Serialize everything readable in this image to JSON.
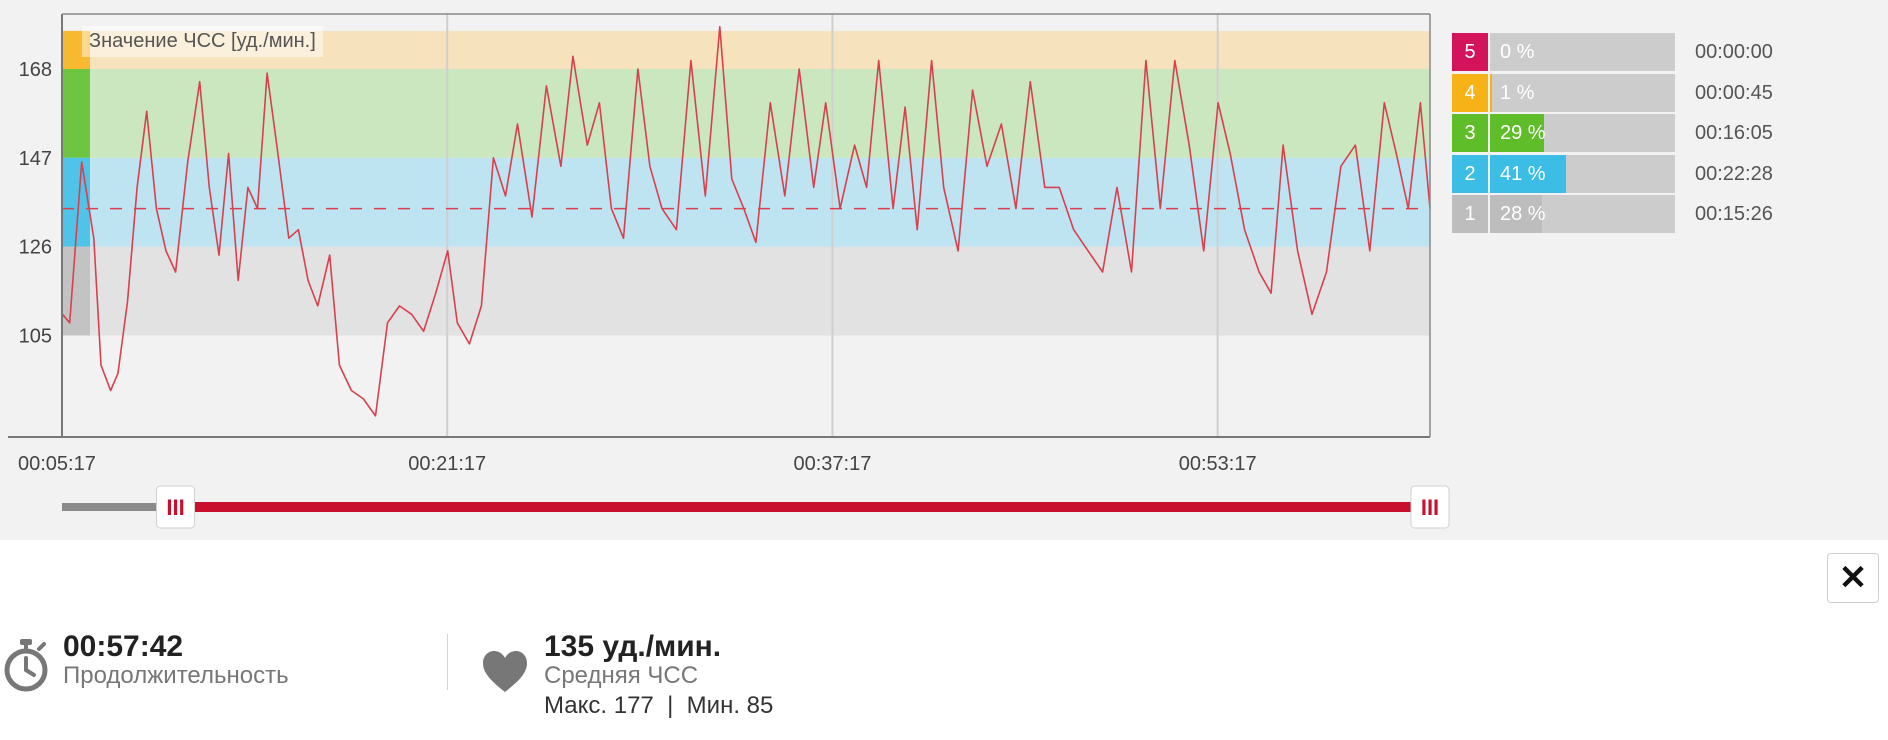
{
  "chart": {
    "title": "Значение ЧСС [уд./мин.]",
    "y_ticks": [
      "168",
      "147",
      "126",
      "105"
    ],
    "x_ticks": [
      "00:05:17",
      "00:21:17",
      "00:37:17",
      "00:53:17"
    ]
  },
  "chart_data": {
    "type": "line",
    "title": "Значение ЧСС [уд./мин.]",
    "xlabel": "",
    "ylabel": "",
    "x_tick_labels": [
      "00:05:17",
      "00:21:17",
      "00:37:17",
      "00:53:17"
    ],
    "y_tick_labels": [
      168,
      147,
      126,
      105
    ],
    "ylim": [
      81,
      181
    ],
    "x_range_minutes": [
      5.28,
      62.1
    ],
    "average_line": 135,
    "zone_bands": [
      {
        "zone": 1,
        "from": 105,
        "to": 126,
        "color": "#e2e2e2"
      },
      {
        "zone": 2,
        "from": 126,
        "to": 147,
        "color": "#bee3f1"
      },
      {
        "zone": 3,
        "from": 147,
        "to": 168,
        "color": "#cbe7bf"
      },
      {
        "zone": 4,
        "from": 168,
        "to": 177,
        "color": "#f6e3bd"
      }
    ],
    "series": [
      {
        "color": "#d8404e",
        "x": [
          5.3,
          5.6,
          6.1,
          6.6,
          6.9,
          7.3,
          7.6,
          8.0,
          8.4,
          8.8,
          9.2,
          9.6,
          10.0,
          10.5,
          11.0,
          11.4,
          11.8,
          12.2,
          12.6,
          13.0,
          13.4,
          13.8,
          14.2,
          14.7,
          15.1,
          15.5,
          15.9,
          16.4,
          16.8,
          17.3,
          17.8,
          18.3,
          18.8,
          19.3,
          19.8,
          20.3,
          20.8,
          21.3,
          21.7,
          22.2,
          22.7,
          23.2,
          23.7,
          24.2,
          24.8,
          25.4,
          26.0,
          26.5,
          27.1,
          27.6,
          28.1,
          28.6,
          29.2,
          29.7,
          30.2,
          30.8,
          31.4,
          32.0,
          32.6,
          33.1,
          33.6,
          34.1,
          34.7,
          35.3,
          35.9,
          36.5,
          37.0,
          37.6,
          38.2,
          38.7,
          39.2,
          39.8,
          40.3,
          40.8,
          41.4,
          41.9,
          42.5,
          43.1,
          43.7,
          44.3,
          44.9,
          45.5,
          46.1,
          46.7,
          47.3,
          47.9,
          48.5,
          49.1,
          49.7,
          50.3,
          50.9,
          51.5,
          52.1,
          52.7,
          53.3,
          53.8,
          54.4,
          55.0,
          55.5,
          56.0,
          56.6,
          57.2,
          57.8,
          58.4,
          59.0,
          59.6,
          60.2,
          60.7,
          61.2,
          61.7,
          62.1
        ],
        "y": [
          110,
          108,
          146,
          128,
          98,
          92,
          96,
          113,
          140,
          158,
          135,
          125,
          120,
          146,
          165,
          140,
          124,
          148,
          118,
          140,
          135,
          167,
          150,
          128,
          130,
          118,
          112,
          124,
          98,
          92,
          90,
          86,
          108,
          112,
          110,
          106,
          115,
          125,
          108,
          103,
          112,
          147,
          138,
          155,
          133,
          164,
          145,
          171,
          150,
          160,
          135,
          128,
          168,
          145,
          135,
          130,
          170,
          138,
          178,
          142,
          135,
          127,
          160,
          138,
          168,
          140,
          160,
          135,
          150,
          140,
          170,
          135,
          159,
          130,
          170,
          140,
          125,
          163,
          145,
          155,
          135,
          165,
          140,
          140,
          130,
          125,
          120,
          140,
          120,
          170,
          135,
          170,
          150,
          125,
          160,
          148,
          130,
          120,
          115,
          150,
          125,
          110,
          120,
          145,
          150,
          125,
          160,
          148,
          135,
          160,
          135
        ]
      }
    ]
  },
  "zones": [
    {
      "num": "5",
      "pct": "0 %",
      "fill_fraction": 0.0,
      "time": "00:00:00",
      "color": "#d4145a"
    },
    {
      "num": "4",
      "pct": "1 %",
      "fill_fraction": 0.01,
      "time": "00:00:45",
      "color": "#f7b217"
    },
    {
      "num": "3",
      "pct": "29 %",
      "fill_fraction": 0.29,
      "time": "00:16:05",
      "color": "#5fbd2a"
    },
    {
      "num": "2",
      "pct": "41 %",
      "fill_fraction": 0.41,
      "time": "00:22:28",
      "color": "#3cbde6"
    },
    {
      "num": "1",
      "pct": "28 %",
      "fill_fraction": 0.28,
      "time": "00:15:26",
      "color": "#bdbdbd"
    }
  ],
  "slider": {
    "start_fraction": 0.083,
    "end_fraction": 1.0,
    "handle_glyph": "III"
  },
  "close_label": "✕",
  "duration": {
    "value": "00:57:42",
    "label": "Продолжительность",
    "icon": "stopwatch-icon"
  },
  "heart_rate": {
    "value": "135 уд./мин.",
    "label": "Средняя ЧСС",
    "max_min": "Макс. 177  |  Мин. 85",
    "icon": "heart-icon"
  },
  "colors": {
    "line": "#d8404e",
    "slider_active": "#c8102e",
    "slider_inactive": "#8a8a8a"
  }
}
